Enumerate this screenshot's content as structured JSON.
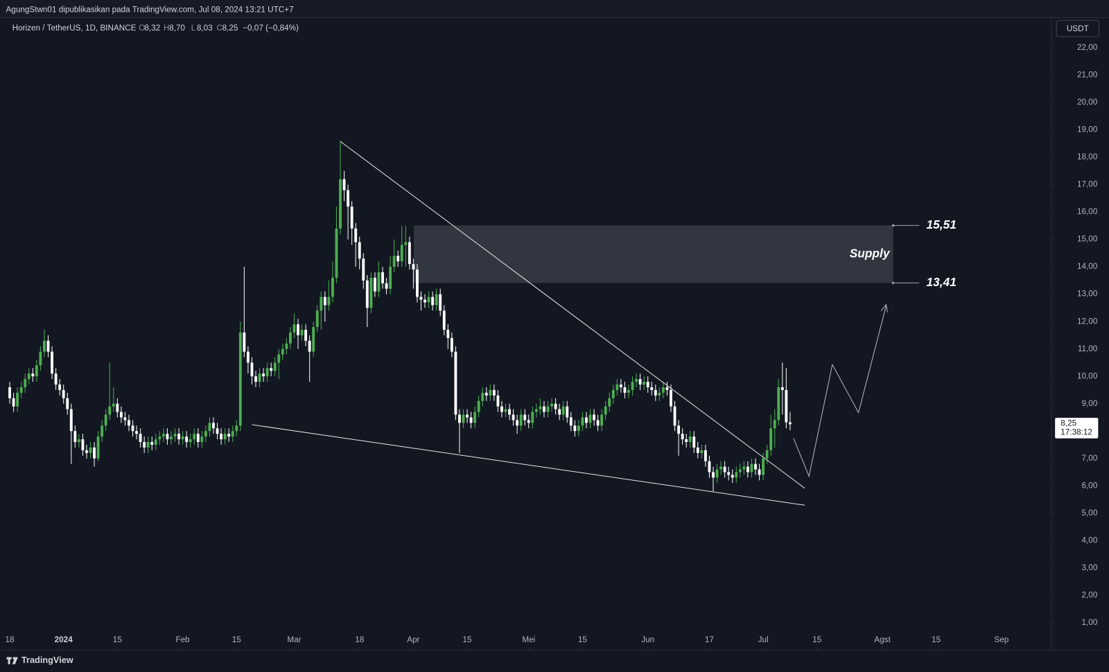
{
  "header": "AgungStwn01 dipublikasikan pada TradingView.com, Jul 08, 2024 13:21 UTC+7",
  "footer": "TradingView",
  "chart_data": {
    "type": "candlestick",
    "symbol": "Horizen / TetherUS, 1D, BINANCE",
    "ohlc_legend": [
      {
        "key": "O",
        "value": "8,32"
      },
      {
        "key": "H",
        "value": "8,70"
      },
      {
        "key": "L",
        "value": "8,03"
      },
      {
        "key": "C",
        "value": "8,25"
      }
    ],
    "change": "−0,07 (−0,84%)",
    "currency": "USDT",
    "up_color": "#4caf50",
    "down_color": "#ffffff",
    "last_price": {
      "value": 8.25,
      "label": "8,25"
    },
    "countdown": "17:38:12",
    "supply": {
      "label": "Supply",
      "top": {
        "value": 15.51,
        "label": "15,51"
      },
      "bottom": {
        "value": 13.41,
        "label": "13,41"
      }
    },
    "xlim": [
      -1,
      271
    ],
    "xticks": [
      {
        "value": 0,
        "label": "18"
      },
      {
        "value": 14,
        "label": "2024"
      },
      {
        "value": 28,
        "label": "15"
      },
      {
        "value": 45,
        "label": "Feb"
      },
      {
        "value": 59,
        "label": "15"
      },
      {
        "value": 74,
        "label": "Mar"
      },
      {
        "value": 91,
        "label": "18"
      },
      {
        "value": 105,
        "label": "Apr"
      },
      {
        "value": 119,
        "label": "15"
      },
      {
        "value": 135,
        "label": "Mei"
      },
      {
        "value": 149,
        "label": "15"
      },
      {
        "value": 166,
        "label": "Jun"
      },
      {
        "value": 182,
        "label": "17"
      },
      {
        "value": 196,
        "label": "Jul"
      },
      {
        "value": 210,
        "label": "15"
      },
      {
        "value": 227,
        "label": "Agst"
      },
      {
        "value": 241,
        "label": "15"
      },
      {
        "value": 258,
        "label": "Sep"
      }
    ],
    "ylim": [
      0,
      23.1
    ],
    "yticks": [
      {
        "value": 1,
        "label": "1,00"
      },
      {
        "value": 2,
        "label": "2,00"
      },
      {
        "value": 3,
        "label": "3,00"
      },
      {
        "value": 4,
        "label": "4,00"
      },
      {
        "value": 5,
        "label": "5,00"
      },
      {
        "value": 6,
        "label": "6,00"
      },
      {
        "value": 7,
        "label": "7,00"
      },
      {
        "value": 8,
        "label": "8,00"
      },
      {
        "value": 9,
        "label": "9,00"
      },
      {
        "value": 10,
        "label": "10,00"
      },
      {
        "value": 11,
        "label": "11,00"
      },
      {
        "value": 12,
        "label": "12,00"
      },
      {
        "value": 13,
        "label": "13,00"
      },
      {
        "value": 14,
        "label": "14,00"
      },
      {
        "value": 15,
        "label": "15,00"
      },
      {
        "value": 16,
        "label": "16,00"
      },
      {
        "value": 17,
        "label": "17,00"
      },
      {
        "value": 18,
        "label": "18,00"
      },
      {
        "value": 19,
        "label": "19,00"
      },
      {
        "value": 20,
        "label": "20,00"
      },
      {
        "value": 21,
        "label": "21,00"
      },
      {
        "value": 22,
        "label": "22,00"
      }
    ],
    "open": [
      9.6,
      9.2,
      8.9,
      9.4,
      9.6,
      9.9,
      10.1,
      10.0,
      10.4,
      10.9,
      11.3,
      10.9,
      10.1,
      9.7,
      9.5,
      9.2,
      8.8,
      8.0,
      7.6,
      7.7,
      7.3,
      7.2,
      7.4,
      7.0,
      7.8,
      8.2,
      8.6,
      8.9,
      9.0,
      8.7,
      8.5,
      8.4,
      8.2,
      8.0,
      7.9,
      7.6,
      7.4,
      7.6,
      7.5,
      7.7,
      7.8,
      7.9,
      7.7,
      7.8,
      7.9,
      7.7,
      7.8,
      7.6,
      7.7,
      7.9,
      7.6,
      7.8,
      8.0,
      8.3,
      8.1,
      7.9,
      7.7,
      7.9,
      7.8,
      8.0,
      8.2,
      11.6,
      10.9,
      10.5,
      10.0,
      9.8,
      10.1,
      10.0,
      10.3,
      10.2,
      10.5,
      10.8,
      11.0,
      11.2,
      11.6,
      11.9,
      11.5,
      11.7,
      11.3,
      10.9,
      11.8,
      12.4,
      12.9,
      12.6,
      12.9,
      13.6,
      15.4,
      17.2,
      16.8,
      16.2,
      15.4,
      14.9,
      14.3,
      13.5,
      12.5,
      13.6,
      13.1,
      13.8,
      13.4,
      13.2,
      14.0,
      14.4,
      14.2,
      14.8,
      14.9,
      14.1,
      13.9,
      12.9,
      12.8,
      12.7,
      12.9,
      12.6,
      13.0,
      12.4,
      11.7,
      11.4,
      10.9,
      8.6,
      8.3,
      8.6,
      8.5,
      8.3,
      8.7,
      9.1,
      9.4,
      9.3,
      9.5,
      9.3,
      8.9,
      8.7,
      8.8,
      8.6,
      8.4,
      8.2,
      8.6,
      8.4,
      8.3,
      8.7,
      8.8,
      8.9,
      8.7,
      8.9,
      9.0,
      8.8,
      8.6,
      8.9,
      8.5,
      8.2,
      8.0,
      8.2,
      8.5,
      8.3,
      8.6,
      8.4,
      8.2,
      8.6,
      8.9,
      9.2,
      9.5,
      9.7,
      9.6,
      9.4,
      9.5,
      9.8,
      9.9,
      9.7,
      9.8,
      9.6,
      9.5,
      9.3,
      9.4,
      9.6,
      9.5,
      8.9,
      8.2,
      7.9,
      7.7,
      7.6,
      7.8,
      7.4,
      7.2,
      7.3,
      6.9,
      6.5,
      6.3,
      6.6,
      6.7,
      6.5,
      6.4,
      6.3,
      6.5,
      6.6,
      6.7,
      6.5,
      6.8,
      6.6,
      6.4,
      7.0,
      7.3,
      8.1,
      8.4,
      9.6,
      9.5,
      8.32
    ],
    "high": [
      9.8,
      9.4,
      9.6,
      9.8,
      10.1,
      10.3,
      10.3,
      10.6,
      11.1,
      11.7,
      11.5,
      11.1,
      10.3,
      9.9,
      9.7,
      9.4,
      9.0,
      8.2,
      7.9,
      7.9,
      7.5,
      7.6,
      7.6,
      8.0,
      8.4,
      8.8,
      10.5,
      9.6,
      9.2,
      8.9,
      8.7,
      8.6,
      8.4,
      8.2,
      8.1,
      7.8,
      7.8,
      7.8,
      7.9,
      8.0,
      8.1,
      8.1,
      8.0,
      8.1,
      8.1,
      8.0,
      8.0,
      7.9,
      8.1,
      8.1,
      8.0,
      8.2,
      8.5,
      8.5,
      8.3,
      8.1,
      8.1,
      8.1,
      8.2,
      8.4,
      12.0,
      14.0,
      11.1,
      10.7,
      10.2,
      10.3,
      10.3,
      10.5,
      10.5,
      10.7,
      11.0,
      11.2,
      11.4,
      11.8,
      12.3,
      12.1,
      11.9,
      11.9,
      11.5,
      12.0,
      12.6,
      13.1,
      13.1,
      13.5,
      14.2,
      16.2,
      18.6,
      17.5,
      17.0,
      16.4,
      15.6,
      15.1,
      14.5,
      13.7,
      13.8,
      13.8,
      14.2,
      14.0,
      13.6,
      14.4,
      15.0,
      14.6,
      15.5,
      15.5,
      15.1,
      14.3,
      14.1,
      13.1,
      13.0,
      13.1,
      13.1,
      13.2,
      13.2,
      12.6,
      11.9,
      11.6,
      11.1,
      8.8,
      8.8,
      8.8,
      8.7,
      8.9,
      9.3,
      9.6,
      9.6,
      9.7,
      9.7,
      9.5,
      9.1,
      9.0,
      9.0,
      8.8,
      8.6,
      8.8,
      8.8,
      8.6,
      8.9,
      9.0,
      9.2,
      9.1,
      9.1,
      9.2,
      9.2,
      9.0,
      9.1,
      9.1,
      8.7,
      8.4,
      8.4,
      8.7,
      8.7,
      8.8,
      8.8,
      8.6,
      8.8,
      9.1,
      9.4,
      9.7,
      9.9,
      9.9,
      9.8,
      9.7,
      10.0,
      10.1,
      10.1,
      10.0,
      10.0,
      9.8,
      9.7,
      9.6,
      9.8,
      9.8,
      9.7,
      9.1,
      8.4,
      8.1,
      7.9,
      8.0,
      8.0,
      7.6,
      7.5,
      7.5,
      7.1,
      6.7,
      6.8,
      6.9,
      6.9,
      6.7,
      6.6,
      6.7,
      6.8,
      6.9,
      6.9,
      7.0,
      7.0,
      6.8,
      7.2,
      7.5,
      8.6,
      8.8,
      9.9,
      10.5,
      10.3,
      8.7
    ],
    "low": [
      9.0,
      8.7,
      8.7,
      9.2,
      9.4,
      9.7,
      9.8,
      9.8,
      10.2,
      10.7,
      10.7,
      9.9,
      9.5,
      9.3,
      9.0,
      8.6,
      6.8,
      7.4,
      7.4,
      7.1,
      7.0,
      7.0,
      6.7,
      6.9,
      7.6,
      8.0,
      8.4,
      8.7,
      8.5,
      8.3,
      8.2,
      8.0,
      7.8,
      7.7,
      7.4,
      7.2,
      7.2,
      7.3,
      7.3,
      7.5,
      7.6,
      7.5,
      7.5,
      7.6,
      7.5,
      7.5,
      7.4,
      7.4,
      7.5,
      7.4,
      7.4,
      7.6,
      7.8,
      7.9,
      7.7,
      7.5,
      7.5,
      7.6,
      7.6,
      7.8,
      8.0,
      10.7,
      10.1,
      9.7,
      9.6,
      9.6,
      9.8,
      9.8,
      10.0,
      10.0,
      9.9,
      10.6,
      10.8,
      11.0,
      11.4,
      11.0,
      11.3,
      11.1,
      9.8,
      10.7,
      11.6,
      11.7,
      12.0,
      12.4,
      12.7,
      13.4,
      15.2,
      16.4,
      15.0,
      14.8,
      14.0,
      13.9,
      13.2,
      11.8,
      12.3,
      12.9,
      12.9,
      13.2,
      13.0,
      13.0,
      13.8,
      14.0,
      14.0,
      14.0,
      13.9,
      13.2,
      12.7,
      12.4,
      12.5,
      12.5,
      12.4,
      12.4,
      12.2,
      11.5,
      11.0,
      10.7,
      8.4,
      7.2,
      8.1,
      8.3,
      8.1,
      8.1,
      8.5,
      8.9,
      9.1,
      9.1,
      9.1,
      8.7,
      8.5,
      8.5,
      8.4,
      8.2,
      7.9,
      8.0,
      8.2,
      8.1,
      8.1,
      8.5,
      8.6,
      8.5,
      8.5,
      8.7,
      8.6,
      8.4,
      8.4,
      8.3,
      8.0,
      7.8,
      7.8,
      8.0,
      8.1,
      8.1,
      8.2,
      8.0,
      8.0,
      8.4,
      8.7,
      9.0,
      9.3,
      9.4,
      9.2,
      9.2,
      9.3,
      9.6,
      9.5,
      9.5,
      9.4,
      9.3,
      9.1,
      9.1,
      9.2,
      9.3,
      8.7,
      8.0,
      7.1,
      7.5,
      7.4,
      7.4,
      7.2,
      7.0,
      7.0,
      6.7,
      6.3,
      5.8,
      6.1,
      6.4,
      6.3,
      6.2,
      6.1,
      6.1,
      6.3,
      6.4,
      6.3,
      6.3,
      6.4,
      6.2,
      6.2,
      6.8,
      7.1,
      7.4,
      8.2,
      8.6,
      8.1,
      8.03
    ],
    "close": [
      9.2,
      8.9,
      9.4,
      9.6,
      9.9,
      10.1,
      10.0,
      10.4,
      10.9,
      11.3,
      10.9,
      10.1,
      9.7,
      9.5,
      9.2,
      8.8,
      8.0,
      7.6,
      7.7,
      7.3,
      7.2,
      7.4,
      7.0,
      7.8,
      8.2,
      8.6,
      8.9,
      9.0,
      8.7,
      8.5,
      8.4,
      8.2,
      8.0,
      7.9,
      7.6,
      7.4,
      7.6,
      7.5,
      7.7,
      7.8,
      7.9,
      7.7,
      7.8,
      7.9,
      7.7,
      7.8,
      7.6,
      7.7,
      7.9,
      7.6,
      7.8,
      8.0,
      8.3,
      8.1,
      7.9,
      7.7,
      7.9,
      7.8,
      8.0,
      8.2,
      11.6,
      10.9,
      10.5,
      10.0,
      9.8,
      10.1,
      10.0,
      10.3,
      10.2,
      10.5,
      10.8,
      11.0,
      11.2,
      11.6,
      11.9,
      11.5,
      11.7,
      11.3,
      10.9,
      11.8,
      12.4,
      12.9,
      12.6,
      12.9,
      13.6,
      15.4,
      17.2,
      16.8,
      16.2,
      15.4,
      14.9,
      14.3,
      13.5,
      12.5,
      13.6,
      13.1,
      13.8,
      13.4,
      13.2,
      14.0,
      14.4,
      14.2,
      14.8,
      14.9,
      14.1,
      13.9,
      12.9,
      12.8,
      12.7,
      12.9,
      12.6,
      13.0,
      12.4,
      11.7,
      11.4,
      10.9,
      8.6,
      8.3,
      8.6,
      8.5,
      8.3,
      8.7,
      9.1,
      9.4,
      9.3,
      9.5,
      9.3,
      8.9,
      8.7,
      8.8,
      8.6,
      8.4,
      8.2,
      8.6,
      8.4,
      8.3,
      8.7,
      8.8,
      8.9,
      8.7,
      8.9,
      9.0,
      8.8,
      8.6,
      8.9,
      8.5,
      8.2,
      8.0,
      8.2,
      8.5,
      8.3,
      8.6,
      8.4,
      8.2,
      8.6,
      8.9,
      9.2,
      9.5,
      9.7,
      9.6,
      9.4,
      9.5,
      9.8,
      9.9,
      9.7,
      9.8,
      9.6,
      9.5,
      9.3,
      9.4,
      9.6,
      9.5,
      8.9,
      8.2,
      7.9,
      7.7,
      7.6,
      7.8,
      7.4,
      7.2,
      7.3,
      6.9,
      6.5,
      6.3,
      6.6,
      6.7,
      6.5,
      6.4,
      6.3,
      6.5,
      6.6,
      6.7,
      6.5,
      6.8,
      6.6,
      6.4,
      7.0,
      7.3,
      8.1,
      8.4,
      9.6,
      9.5,
      8.32,
      8.25
    ]
  }
}
